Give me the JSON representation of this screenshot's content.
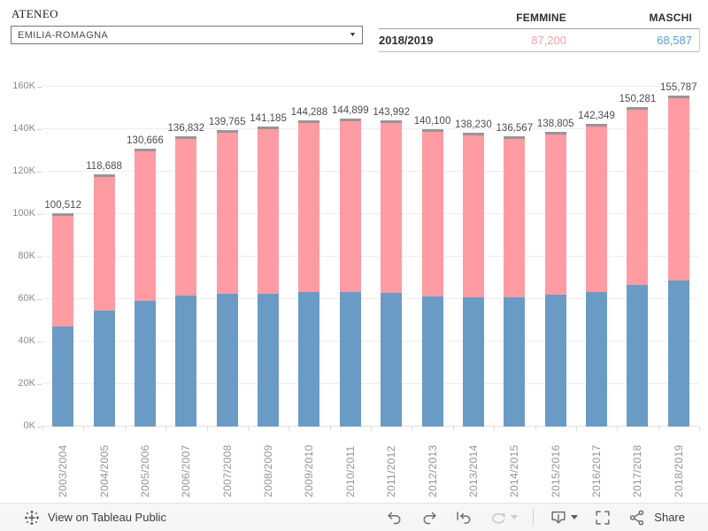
{
  "filter": {
    "label": "ATENEO",
    "value": "EMILIA-ROMAGNA"
  },
  "summary_table": {
    "columns": [
      "FEMMINE",
      "MASCHI"
    ],
    "row_label": "2018/2019",
    "femmine_value": "87,200",
    "maschi_value": "68,587"
  },
  "colors": {
    "femmine_bar": "#FF9BA3",
    "maschi_bar": "#6A9BC4",
    "bar_cap": "#969696",
    "femmine_text": "#F8A0A8",
    "maschi_text": "#5A9BD5"
  },
  "chart_data": {
    "type": "bar",
    "stacked": true,
    "title": "",
    "xlabel": "",
    "ylabel": "",
    "ylim": [
      0,
      160000
    ],
    "grid": true,
    "y_tick_labels": [
      "0K",
      "20K",
      "40K",
      "60K",
      "80K",
      "100K",
      "120K",
      "140K",
      "160K"
    ],
    "categories": [
      "2003/2004",
      "2004/2005",
      "2005/2006",
      "2006/2007",
      "2007/2008",
      "2008/2009",
      "2009/2010",
      "2010/2011",
      "2011/2012",
      "2012/2013",
      "2013/2014",
      "2014/2015",
      "2015/2016",
      "2016/2017",
      "2017/2018",
      "2018/2019"
    ],
    "series": [
      {
        "name": "MASCHI",
        "color": "#6A9BC4",
        "values": [
          47000,
          54500,
          59000,
          61500,
          62500,
          62700,
          63400,
          63500,
          62800,
          61400,
          61000,
          60700,
          62100,
          63500,
          66800,
          68587
        ]
      },
      {
        "name": "FEMMINE",
        "color": "#FF9BA3",
        "values": [
          53512,
          64188,
          71666,
          75332,
          77265,
          78485,
          80888,
          81399,
          81192,
          78700,
          77230,
          75867,
          76705,
          78849,
          83481,
          87200
        ]
      }
    ],
    "totals": [
      100512,
      118688,
      130666,
      136832,
      139765,
      141185,
      144288,
      144899,
      143992,
      140100,
      138230,
      136567,
      138805,
      142349,
      150281,
      155787
    ],
    "total_labels": [
      "100,512",
      "118,688",
      "130,666",
      "136,832",
      "139,765",
      "141,185",
      "144,288",
      "144,899",
      "143,992",
      "140,100",
      "138,230",
      "136,567",
      "138,805",
      "142,349",
      "150,281",
      "155,787"
    ],
    "legend": "none"
  },
  "footer": {
    "brand_text": "View on Tableau Public",
    "share_label": "Share"
  }
}
